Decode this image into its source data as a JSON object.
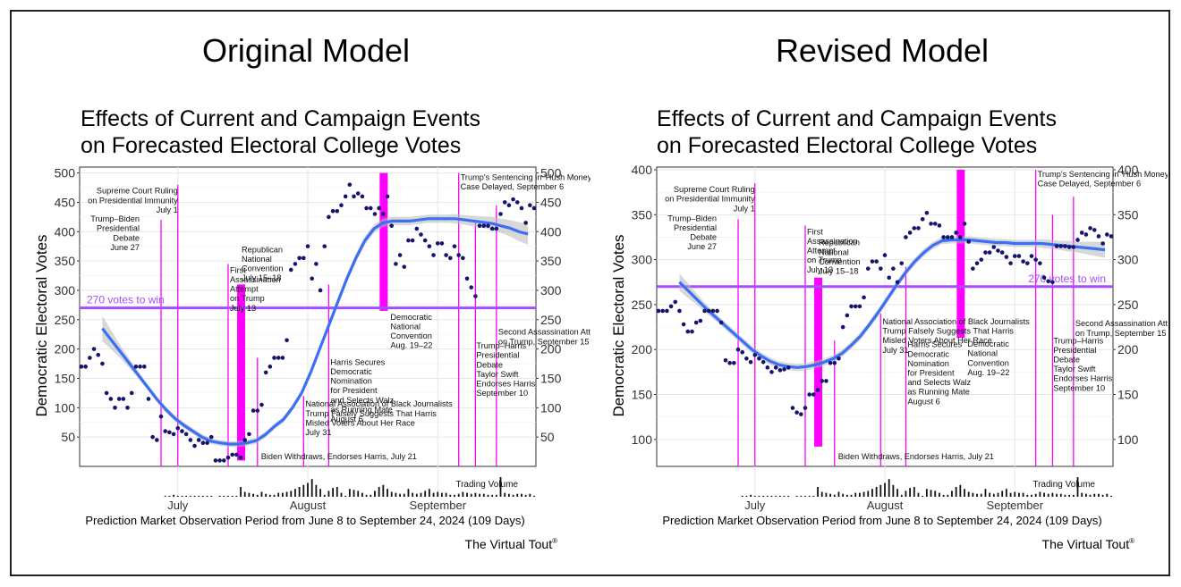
{
  "panels": [
    {
      "heading": "Original Model",
      "chart_data": {
        "type": "scatter",
        "title": "Effects of Current and Campaign Events on Forecasted Electoral College Votes",
        "title_lines": [
          "Effects of Current and Campaign Events",
          "on Forecasted Electoral College Votes"
        ],
        "ylabel": "Democratic Electoral Votes",
        "xlabel": "Prediction Market Observation Period from June 8 to September 24, 2024 (109 Days)",
        "x_range": [
          1,
          109
        ],
        "ylim": [
          0,
          510
        ],
        "yticks": [
          50,
          100,
          150,
          200,
          250,
          300,
          350,
          400,
          450,
          500
        ],
        "month_ticks": [
          {
            "day": 24,
            "label": "July"
          },
          {
            "day": 55,
            "label": "August"
          },
          {
            "day": 86,
            "label": "September"
          }
        ],
        "threshold": {
          "value": 270,
          "label": "270 votes to win",
          "label_side": "left"
        },
        "series": [
          {
            "values": [
              170,
              170,
              185,
              200,
              190,
              175,
              125,
              115,
              100,
              115,
              115,
              100,
              125,
              170,
              170,
              170,
              115,
              50,
              45,
              85,
              60,
              58,
              55,
              65,
              60,
              55,
              45,
              35,
              45,
              40,
              40,
              50,
              10,
              10,
              10,
              15,
              20,
              20,
              15,
              45,
              55,
              95,
              95,
              105,
              160,
              170,
              185,
              185,
              185,
              215,
              335,
              345,
              355,
              355,
              375,
              320,
              345,
              300,
              375,
              425,
              435,
              435,
              445,
              460,
              480,
              460,
              465,
              460,
              440,
              440,
              430,
              440,
              430,
              460,
              410,
              345,
              360,
              340,
              385,
              385,
              405,
              395,
              385,
              375,
              360,
              380,
              380,
              360,
              355,
              375,
              360,
              355,
              320,
              305,
              290,
              410,
              410,
              410,
              405,
              405,
              430,
              450,
              445,
              455,
              450,
              440,
              415,
              445,
              440
            ]
          }
        ],
        "trend": [
          235,
          215,
          195,
          175,
          155,
          135,
          115,
          97,
          82,
          70,
          60,
          50,
          43,
          40,
          38,
          38,
          40,
          44,
          54,
          68,
          80,
          100,
          125,
          160,
          200,
          240,
          280,
          320,
          355,
          385,
          405,
          415,
          418,
          418,
          418,
          420,
          422,
          422,
          422,
          422,
          420,
          418,
          416,
          414,
          410,
          406,
          400,
          396
        ],
        "trend_start": 6,
        "trend_step": 2.16,
        "band_halfwidth": [
          22,
          16,
          11,
          8,
          6,
          5,
          5,
          5,
          5,
          5,
          5,
          5,
          5,
          5,
          5,
          5,
          5,
          5,
          5,
          5,
          5,
          5,
          5,
          6,
          6,
          7,
          7,
          7,
          7,
          7,
          7,
          7,
          7,
          7,
          7,
          7,
          7,
          7,
          7,
          8,
          8,
          9,
          10,
          11,
          12,
          14,
          16,
          18
        ],
        "legend": "Trading Volume",
        "volume": [
          0,
          0,
          0,
          0,
          0,
          0,
          0,
          0,
          0,
          0,
          0,
          0,
          0,
          0,
          0,
          0,
          0,
          0,
          0,
          0,
          1,
          1,
          2,
          1,
          1,
          1,
          1,
          1,
          1,
          1,
          1,
          1,
          0,
          1,
          1,
          1,
          1,
          1,
          10,
          5,
          4,
          3,
          2,
          5,
          3,
          2,
          2,
          4,
          4,
          5,
          6,
          8,
          10,
          12,
          14,
          18,
          12,
          8,
          2,
          6,
          9,
          10,
          4,
          1,
          8,
          7,
          6,
          4,
          2,
          2,
          6,
          10,
          12,
          8,
          5,
          4,
          3,
          3,
          8,
          4,
          3,
          4,
          6,
          8,
          4,
          5,
          4,
          4,
          2,
          2,
          3,
          5,
          4,
          3,
          4,
          3,
          3,
          2,
          2,
          2,
          20,
          4,
          3,
          2,
          3,
          3,
          2,
          3,
          1
        ]
      },
      "events": [
        {
          "label": "Supreme Court Ruling on Presidential Immunity July 1",
          "lines": [
            "Supreme Court Ruling",
            "on Presidential Immunity",
            "July 1"
          ],
          "day": 24,
          "top": 480
        },
        {
          "label": "Trump-Biden Presidential Debate June 27",
          "lines": [
            "Trump–Biden",
            "Presidential",
            "Debate",
            "June 27"
          ],
          "day": 20,
          "top": 420
        },
        {
          "label": "First Assassination Attempt on Trump July 13",
          "lines": [
            "First",
            "Assassination",
            "Attempt",
            "on Trump",
            "July 13"
          ],
          "day": 36,
          "top": 345
        },
        {
          "label": "Republican National Convention July 15-18",
          "lines": [
            "Republican",
            "National",
            "Convention",
            "July 15–18"
          ],
          "day": 39,
          "top": 310,
          "bar": true,
          "bar_from": 10
        },
        {
          "label": "Biden Withdraws, Endorses Harris, July 21",
          "lines": [
            "Biden Withdraws, Endorses Harris, July 21"
          ],
          "day": 43,
          "top": 185
        },
        {
          "label": "National Association of Black Journalists Trump Falsely Suggests That Harris Misled Voters About Her Race July 31",
          "lines": [
            "National Association of Black Journalists",
            "Trump Falsely Suggests That Harris",
            "Misled Voters About Her Race",
            "July 31"
          ],
          "day": 54,
          "top": 120
        },
        {
          "label": "Harris Secures Democratic Nomination for President and Selects Walz as Running Mate August 6",
          "lines": [
            "Harris Secures",
            "Democratic",
            "Nomination",
            "for President",
            "and Selects Walz",
            "as Running Mate",
            "August 6"
          ],
          "day": 60,
          "top": 310
        },
        {
          "label": "Democratic National Convention Aug. 19-22",
          "lines": [
            "Democratic",
            "National",
            "Convention",
            "Aug. 19–22"
          ],
          "day": 73,
          "top": 500,
          "bar": true,
          "bar_from": 265
        },
        {
          "label": "Trump's Sentencing in 'Hush Money' Case Delayed, September 6",
          "lines": [
            "Trump's Sentencing in 'Hush Money'",
            "Case Delayed, September 6"
          ],
          "day": 91,
          "top": 500
        },
        {
          "label": "Trump-Harris Presidential Debate Taylor Swift Endorses Harris September 10",
          "lines": [
            "Trump–Harris",
            "Presidential",
            "Debate",
            "Taylor Swift",
            "Endorses Harris",
            "September 10"
          ],
          "day": 95,
          "top": 420
        },
        {
          "label": "Second Assassination Attempt on Trump, September 15",
          "lines": [
            "Second Assassination Attempt",
            "on Trump, September 15"
          ],
          "day": 100,
          "top": 445
        }
      ],
      "brand": "The Virtual Tout",
      "brand_mark": "®"
    },
    {
      "heading": "Revised Model",
      "chart_data": {
        "type": "scatter",
        "title": "Effects of Current and Campaign Events on Forecasted Electoral College Votes",
        "title_lines": [
          "Effects of Current and Campaign Events",
          "on Forecasted Electoral College Votes"
        ],
        "ylabel": "Democratic Electoral Votes",
        "xlabel": "Prediction Market Observation Period from June 8 to September 24, 2024 (109 Days)",
        "x_range": [
          1,
          109
        ],
        "ylim": [
          70,
          403
        ],
        "yticks": [
          100,
          150,
          200,
          250,
          300,
          350,
          400
        ],
        "month_ticks": [
          {
            "day": 24,
            "label": "July"
          },
          {
            "day": 55,
            "label": "August"
          },
          {
            "day": 86,
            "label": "September"
          }
        ],
        "threshold": {
          "value": 270,
          "label": "270 votes to win",
          "label_side": "right"
        },
        "series": [
          {
            "values": [
              243,
              243,
              243,
              248,
              253,
              243,
              228,
              220,
              220,
              230,
              232,
              243,
              243,
              243,
              243,
              230,
              188,
              185,
              185,
              200,
              197,
              190,
              186,
              194,
              190,
              186,
              180,
              175,
              180,
              177,
              178,
              180,
              135,
              130,
              128,
              135,
              150,
              150,
              155,
              165,
              165,
              185,
              185,
              190,
              225,
              238,
              248,
              248,
              248,
              258,
              290,
              298,
              298,
              290,
              305,
              280,
              290,
              275,
              296,
              325,
              330,
              335,
              335,
              345,
              352,
              340,
              340,
              338,
              325,
              325,
              325,
              330,
              325,
              340,
              320,
              290,
              296,
              300,
              308,
              308,
              314,
              310,
              308,
              303,
              296,
              304,
              304,
              298,
              296,
              304,
              300,
              296,
              280,
              276,
              275,
              315,
              315,
              315,
              314,
              314,
              322,
              330,
              328,
              335,
              333,
              326,
              318,
              328,
              326
            ]
          }
        ],
        "trend": [
          275,
          265,
          255,
          245,
          236,
          227,
          218,
          209,
          200,
          193,
          187,
          183,
          181,
          180,
          181,
          183,
          186,
          190,
          196,
          205,
          215,
          228,
          242,
          257,
          272,
          286,
          298,
          308,
          316,
          321,
          322,
          322,
          322,
          321,
          320,
          319,
          319,
          318,
          318,
          318,
          318,
          317,
          316,
          315,
          314,
          313,
          312,
          311
        ],
        "trend_start": 6,
        "trend_step": 2.16,
        "band_halfwidth": [
          10,
          8,
          6,
          5,
          4,
          4,
          4,
          4,
          4,
          4,
          4,
          4,
          4,
          4,
          4,
          4,
          4,
          4,
          4,
          4,
          4,
          4,
          4,
          4,
          4,
          4,
          4,
          4,
          4,
          4,
          4,
          4,
          4,
          4,
          4,
          4,
          4,
          4,
          4,
          4,
          5,
          5,
          5,
          6,
          6,
          7,
          8,
          9
        ],
        "legend": "Trading Volume",
        "volume": [
          0,
          0,
          0,
          0,
          0,
          0,
          0,
          0,
          0,
          0,
          0,
          0,
          0,
          0,
          0,
          0,
          0,
          0,
          0,
          0,
          1,
          1,
          2,
          1,
          1,
          1,
          1,
          1,
          1,
          1,
          1,
          1,
          0,
          1,
          1,
          1,
          1,
          1,
          10,
          5,
          4,
          3,
          2,
          5,
          3,
          2,
          2,
          4,
          4,
          5,
          6,
          8,
          10,
          12,
          14,
          18,
          12,
          8,
          2,
          6,
          9,
          10,
          4,
          1,
          8,
          7,
          6,
          4,
          2,
          2,
          6,
          10,
          12,
          8,
          5,
          4,
          3,
          3,
          8,
          4,
          3,
          4,
          6,
          8,
          4,
          5,
          4,
          4,
          2,
          2,
          3,
          5,
          4,
          3,
          4,
          3,
          3,
          2,
          2,
          2,
          20,
          4,
          3,
          2,
          3,
          3,
          2,
          3,
          1
        ]
      },
      "events": [
        {
          "label": "Supreme Court Ruling on Presidential Immunity July 1",
          "lines": [
            "Supreme Court Ruling",
            "on Presidential Immunity",
            "July 1"
          ],
          "day": 24,
          "top": 385
        },
        {
          "label": "Trump-Biden Presidential Debate June 27",
          "lines": [
            "Trump–Biden",
            "Presidential",
            "Debate",
            "June 27"
          ],
          "day": 20,
          "top": 345
        },
        {
          "label": "First Assassination Attempt on Trump July 13",
          "lines": [
            "First",
            "Assassination",
            "Attempt",
            "on Trump",
            "July 13"
          ],
          "day": 36,
          "top": 338
        },
        {
          "label": "Republican National Convention July 15-18",
          "lines": [
            "Republican",
            "National",
            "Convention",
            "July 15–18"
          ],
          "day": 39,
          "top": 280,
          "bar": true,
          "bar_from": 92
        },
        {
          "label": "Biden Withdraws, Endorses Harris, July 21",
          "lines": [
            "Biden Withdraws, Endorses Harris, July 21"
          ],
          "day": 43,
          "top": 210
        },
        {
          "label": "National Association of Black Journalists Trump Falsely Suggests That Harris Misled Voters About Her Race July 31",
          "lines": [
            "National Association of Black Journalists",
            "Trump Falsely Suggests That Harris",
            "Misled Voters About Her Race",
            "July 31"
          ],
          "day": 54,
          "top": 240
        },
        {
          "label": "Harris Secures Democratic Nomination for President and Selects Walz as Running Mate August 6",
          "lines": [
            "Harris Secures",
            "Democratic",
            "Nomination",
            "for President",
            "and Selects Walz",
            "as Running Mate",
            "August 6"
          ],
          "day": 60,
          "top": 292
        },
        {
          "label": "Democratic National Convention Aug. 19-22",
          "lines": [
            "Democratic",
            "National",
            "Convention",
            "Aug. 19–22"
          ],
          "day": 73,
          "top": 400,
          "bar": true,
          "bar_from": 213
        },
        {
          "label": "Trump's Sentencing in 'Hush Money' Case Delayed, September 6",
          "lines": [
            "Trump's Sentencing in 'Hush Money'",
            "Case Delayed, September 6"
          ],
          "day": 91,
          "top": 400
        },
        {
          "label": "Trump-Harris Presidential Debate Taylor Swift Endorses Harris September 10",
          "lines": [
            "Trump–Harris",
            "Presidential",
            "Debate",
            "Taylor Swift",
            "Endorses Harris",
            "September 10"
          ],
          "day": 95,
          "top": 350
        },
        {
          "label": "Second Assassination Attempt on Trump, September 15",
          "lines": [
            "Second Assassination Attempt",
            "on Trump, September 15"
          ],
          "day": 100,
          "top": 370
        }
      ],
      "brand": "The Virtual Tout",
      "brand_mark": "®"
    }
  ]
}
